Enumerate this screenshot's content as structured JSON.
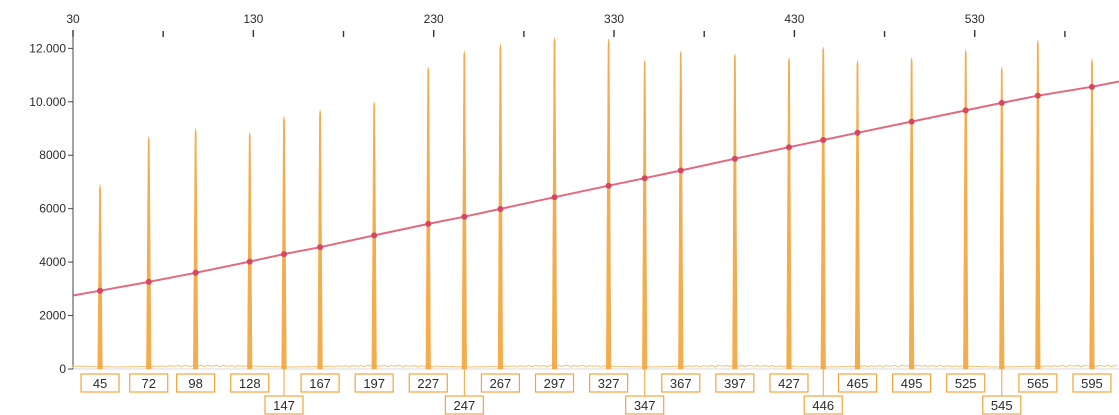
{
  "chart_data": {
    "type": "line",
    "title": "",
    "xlabel": "",
    "ylabel": "",
    "xlim": [
      30,
      610
    ],
    "ylim": [
      0,
      12500
    ],
    "top_axis_ticks": [
      30,
      130,
      230,
      330,
      430,
      530
    ],
    "top_axis_tick_labels": [
      "30",
      "130",
      "230",
      "330",
      "430",
      "530"
    ],
    "y_ticks": [
      0,
      2000,
      4000,
      6000,
      8000,
      10000,
      12000
    ],
    "y_tick_labels": [
      "0",
      "2000",
      "4000",
      "6000",
      "8000",
      "10.000",
      "12.000"
    ],
    "grid": false,
    "colors": {
      "peaks": "#f2a53c",
      "calibration_line": "#d9455f",
      "label_border": "#f2a53c",
      "text": "#2b2b2b"
    },
    "series": [
      {
        "type": "peaks",
        "x": [
          45,
          72,
          98,
          128,
          147,
          167,
          197,
          227,
          247,
          267,
          297,
          327,
          347,
          367,
          397,
          427,
          446,
          465,
          495,
          525,
          545,
          565,
          595
        ],
        "values": [
          6900,
          8700,
          9000,
          8850,
          9450,
          9700,
          10000,
          11300,
          11900,
          12150,
          12400,
          12350,
          11550,
          11900,
          11800,
          11650,
          12050,
          11550,
          11650,
          11950,
          11300,
          12300,
          11600
        ]
      },
      {
        "type": "line",
        "x": [
          30,
          45,
          72,
          98,
          128,
          147,
          167,
          197,
          227,
          247,
          267,
          297,
          327,
          347,
          367,
          397,
          427,
          446,
          465,
          495,
          525,
          545,
          565,
          595,
          610
        ],
        "values": [
          2750,
          2930,
          3260,
          3600,
          4020,
          4300,
          4560,
          5000,
          5430,
          5700,
          5990,
          6430,
          6860,
          7140,
          7430,
          7870,
          8300,
          8570,
          8840,
          9260,
          9680,
          9960,
          10230,
          10560,
          10760
        ]
      }
    ],
    "peak_labels": [
      "45",
      "72",
      "98",
      "128",
      "147",
      "167",
      "197",
      "227",
      "247",
      "267",
      "297",
      "327",
      "347",
      "367",
      "397",
      "427",
      "446",
      "465",
      "495",
      "525",
      "545",
      "565",
      "595"
    ],
    "peak_label_rows": [
      0,
      0,
      0,
      0,
      1,
      0,
      0,
      0,
      1,
      0,
      0,
      0,
      1,
      0,
      0,
      0,
      1,
      0,
      0,
      0,
      1,
      0,
      0
    ]
  }
}
